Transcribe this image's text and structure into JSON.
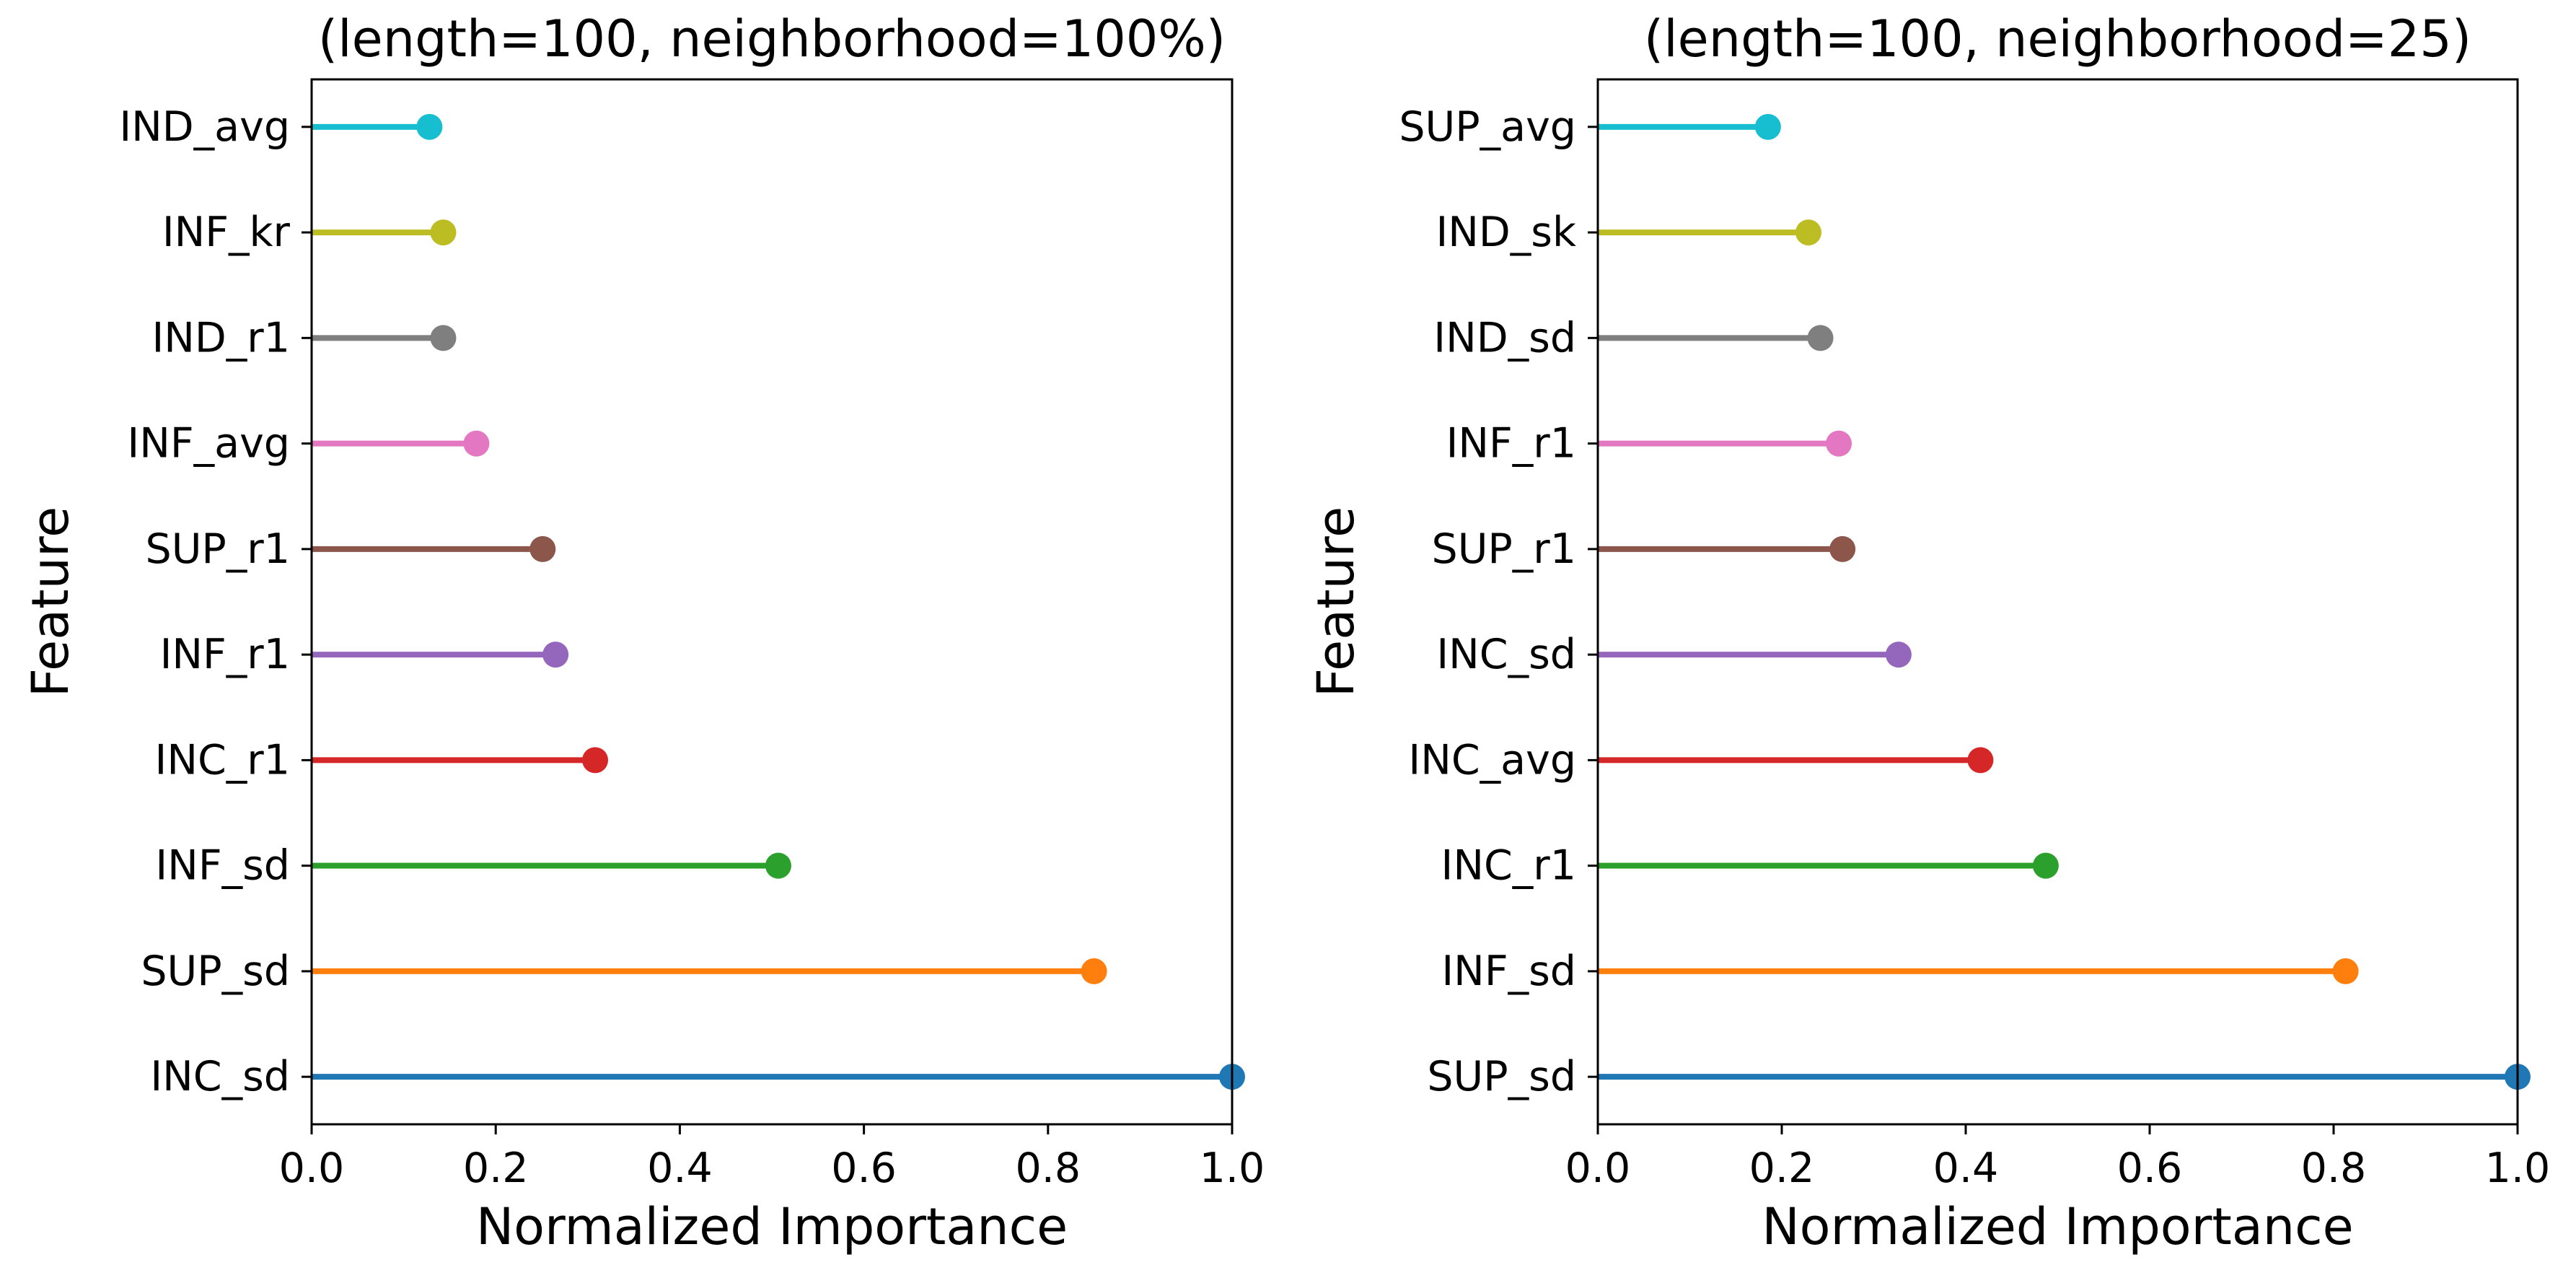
{
  "chart_data": [
    {
      "type": "lollipop",
      "orientation": "horizontal",
      "title": "(length=100, neighborhood=100%)",
      "xlabel": "Normalized Importance",
      "ylabel": "Feature",
      "xlim": [
        0,
        1
      ],
      "xticks": [
        "0.0",
        "0.2",
        "0.4",
        "0.6",
        "0.8",
        "1.0"
      ],
      "grid": false,
      "categories": [
        "INC_sd",
        "SUP_sd",
        "INF_sd",
        "INC_r1",
        "INF_r1",
        "SUP_r1",
        "INF_avg",
        "IND_r1",
        "INF_kr",
        "IND_avg"
      ],
      "values": [
        1.0,
        0.85,
        0.507,
        0.308,
        0.265,
        0.251,
        0.179,
        0.143,
        0.143,
        0.128
      ],
      "colors": [
        "#1f77b4",
        "#ff7f0e",
        "#2ca02c",
        "#d62728",
        "#9467bd",
        "#8c564b",
        "#e377c2",
        "#7f7f7f",
        "#bcbd22",
        "#17becf"
      ]
    },
    {
      "type": "lollipop",
      "orientation": "horizontal",
      "title": "(length=100, neighborhood=25)",
      "xlabel": "Normalized Importance",
      "ylabel": "Feature",
      "xlim": [
        0,
        1
      ],
      "xticks": [
        "0.0",
        "0.2",
        "0.4",
        "0.6",
        "0.8",
        "1.0"
      ],
      "grid": false,
      "categories": [
        "SUP_sd",
        "INF_sd",
        "INC_r1",
        "INC_avg",
        "INC_sd",
        "SUP_r1",
        "INF_r1",
        "IND_sd",
        "IND_sk",
        "SUP_avg"
      ],
      "values": [
        1.0,
        0.813,
        0.487,
        0.416,
        0.327,
        0.266,
        0.262,
        0.242,
        0.229,
        0.185
      ],
      "colors": [
        "#1f77b4",
        "#ff7f0e",
        "#2ca02c",
        "#d62728",
        "#9467bd",
        "#8c564b",
        "#e377c2",
        "#7f7f7f",
        "#bcbd22",
        "#17becf"
      ]
    }
  ]
}
